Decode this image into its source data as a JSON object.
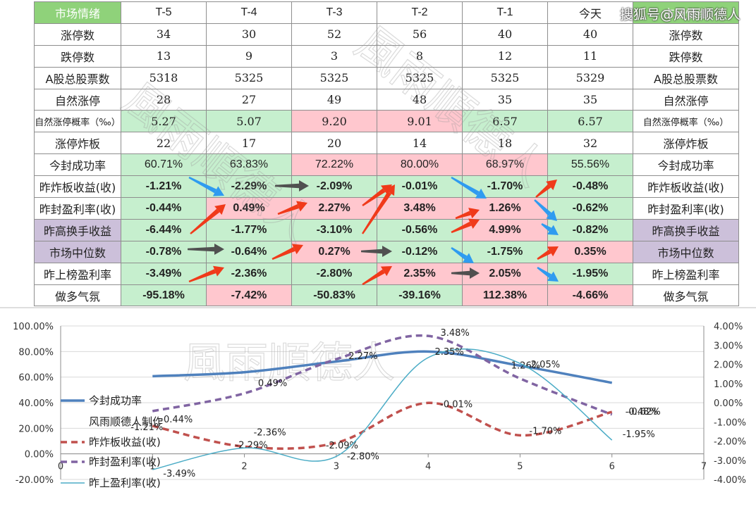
{
  "table": {
    "columns": [
      "市场情绪",
      "T-5",
      "T-4",
      "T-3",
      "T-2",
      "T-1",
      "今天",
      "市场情绪"
    ],
    "rows": [
      {
        "label": "涨停数",
        "values": [
          "34",
          "30",
          "52",
          "56",
          "40",
          "40"
        ],
        "label_right": "涨停数"
      },
      {
        "label": "跌停数",
        "values": [
          "13",
          "9",
          "3",
          "8",
          "12",
          "11"
        ],
        "label_right": "跌停数"
      },
      {
        "label": "A股总股票数",
        "values": [
          "5318",
          "5325",
          "5325",
          "5325",
          "5325",
          "5329"
        ],
        "label_right": "A股总股票数"
      },
      {
        "label": "自然涨停",
        "values": [
          "28",
          "27",
          "49",
          "48",
          "35",
          "35"
        ],
        "label_right": "自然涨停"
      },
      {
        "label": "自然涨停概率（‰）",
        "values": [
          "5.27",
          "5.07",
          "9.20",
          "9.01",
          "6.57",
          "6.57"
        ],
        "label_right": "自然涨停概率（‰）"
      },
      {
        "label": "涨停炸板",
        "values": [
          "22",
          "17",
          "20",
          "14",
          "18",
          "32"
        ],
        "label_right": "涨停炸板"
      },
      {
        "label": "今封成功率",
        "values": [
          "60.71%",
          "63.83%",
          "72.22%",
          "80.00%",
          "68.97%",
          "55.56%"
        ],
        "label_right": "今封成功率"
      },
      {
        "label": "昨炸板收益(收)",
        "values": [
          "-1.21%",
          "-2.29%",
          "-2.09%",
          "-0.01%",
          "-1.70%",
          "-0.48%"
        ],
        "label_right": "昨炸板收益(收)"
      },
      {
        "label": "昨封盈利率(收)",
        "values": [
          "-0.44%",
          "0.49%",
          "2.27%",
          "3.48%",
          "1.26%",
          "-0.62%"
        ],
        "label_right": "昨封盈利率(收)"
      },
      {
        "label": "昨高换手收益",
        "values": [
          "-6.44%",
          "-1.77%",
          "-3.10%",
          "-0.56%",
          "4.99%",
          "-0.82%"
        ],
        "label_right": "昨高换手收益"
      },
      {
        "label": "市场中位数",
        "values": [
          "-0.78%",
          "-0.64%",
          "0.27%",
          "-0.12%",
          "-1.75%",
          "0.35%"
        ],
        "label_right": "市场中位数"
      },
      {
        "label": "昨上榜盈利率",
        "values": [
          "-3.49%",
          "-2.36%",
          "-2.80%",
          "2.35%",
          "2.05%",
          "-1.95%"
        ],
        "label_right": "昨上榜盈利率"
      },
      {
        "label": "做多气氛",
        "values": [
          "-95.18%",
          "-7.42%",
          "-50.83%",
          "-39.16%",
          "112.38%",
          "-4.66%"
        ],
        "label_right": "做多气氛"
      }
    ]
  },
  "logo_text": "搜狐号@风雨顺德人",
  "watermark_text": "風雨順德人",
  "colors": {
    "header": "#8fd27a",
    "good": "#c6efce",
    "bad": "#ffc7ce",
    "purple": "#ccc0da",
    "red_arrow": "#f03a1a",
    "blue_arrow": "#2f9bf0",
    "gray_arrow": "#505050"
  },
  "chart_data": {
    "type": "line",
    "x": [
      1,
      2,
      3,
      4,
      5,
      6
    ],
    "xlim": [
      0,
      7
    ],
    "xticks": [
      "0",
      "1",
      "2",
      "3",
      "4",
      "5",
      "6",
      "7"
    ],
    "yleft": {
      "lim": [
        -20,
        100
      ],
      "ticks": [
        "100.00%",
        "80.00%",
        "60.00%",
        "40.00%",
        "20.00%",
        "0.00%",
        "-20.00%"
      ]
    },
    "yright": {
      "lim": [
        -4,
        4
      ],
      "ticks": [
        "4.00%",
        "3.00%",
        "2.00%",
        "1.00%",
        "0.00%",
        "-1.00%",
        "-2.00%",
        "-3.00%",
        "-4.00%"
      ]
    },
    "series": [
      {
        "name": "今封成功率",
        "axis": "left",
        "color": "#4f81bd",
        "style": "solid-thick",
        "values": [
          60.71,
          63.83,
          72.22,
          80.0,
          68.97,
          55.56
        ],
        "labels": []
      },
      {
        "name": "昨炸板收益(收)",
        "axis": "right",
        "color": "#c0504d",
        "style": "dashed",
        "values": [
          -1.21,
          -2.29,
          -2.09,
          -0.01,
          -1.7,
          -0.48
        ],
        "labels": [
          "-1.21%",
          "-2.29%",
          "-2.09%",
          "-0.01%",
          "-1.70%",
          "-0.48%"
        ]
      },
      {
        "name": "昨封盈利率(收)",
        "axis": "right",
        "color": "#8064a2",
        "style": "dashed",
        "values": [
          -0.44,
          0.49,
          2.27,
          3.48,
          1.26,
          -0.62
        ],
        "labels": [
          "-0.44%",
          "0.49%",
          "2.27%",
          "3.48%",
          "1.26%",
          "-0.62%"
        ]
      },
      {
        "name": "昨上盈利率(收)",
        "axis": "right",
        "color": "#4bacc6",
        "style": "thin",
        "values": [
          -3.49,
          -2.36,
          -2.8,
          2.35,
          2.05,
          -1.95
        ],
        "labels": [
          "-3.49%",
          "-2.36%",
          "-2.80%",
          "2.35%",
          "2.05%",
          "-1.95%"
        ]
      }
    ],
    "legend": {
      "placement": "left",
      "note": "风雨顺德人制作"
    },
    "grid": true
  }
}
